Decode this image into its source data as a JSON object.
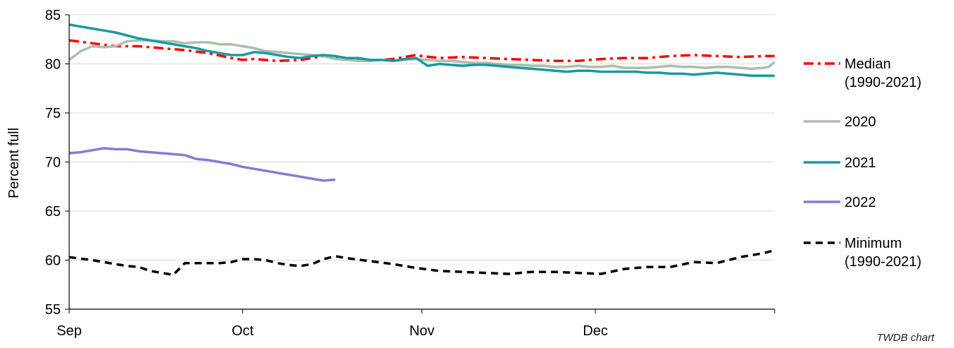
{
  "credit": "TWDB chart",
  "chart_data": {
    "type": "line",
    "ylabel": "Percent full",
    "xlabel": "",
    "ylim": [
      55,
      85
    ],
    "yticks": [
      55,
      60,
      65,
      70,
      75,
      80,
      85
    ],
    "xlim": [
      0,
      122
    ],
    "xticks": [
      {
        "day": 0,
        "label": "Sep"
      },
      {
        "day": 30,
        "label": "Oct"
      },
      {
        "day": 61,
        "label": "Nov"
      },
      {
        "day": 91,
        "label": "Dec"
      }
    ],
    "grid": "horizontal",
    "legend_position": "right",
    "series": [
      {
        "name": "Median (1990-2021)",
        "legend_lines": [
          "Median",
          "(1990-2021)"
        ],
        "color": "#ff0000",
        "style": "dashdot",
        "x": [
          0,
          4,
          8,
          12,
          16,
          20,
          24,
          28,
          30,
          32,
          36,
          40,
          44,
          48,
          52,
          56,
          60,
          61,
          64,
          68,
          72,
          76,
          80,
          84,
          88,
          92,
          96,
          100,
          104,
          108,
          112,
          116,
          120,
          122
        ],
        "y": [
          82.4,
          82.1,
          81.8,
          81.8,
          81.6,
          81.4,
          81.1,
          80.6,
          80.4,
          80.5,
          80.3,
          80.4,
          80.8,
          80.5,
          80.3,
          80.5,
          80.9,
          80.8,
          80.6,
          80.7,
          80.6,
          80.5,
          80.4,
          80.3,
          80.3,
          80.5,
          80.6,
          80.6,
          80.8,
          80.9,
          80.8,
          80.7,
          80.8,
          80.8
        ]
      },
      {
        "name": "2020",
        "legend_lines": [
          "2020"
        ],
        "color": "#a9bfac",
        "style": "solid",
        "x": [
          0,
          2,
          4,
          6,
          8,
          10,
          12,
          14,
          16,
          18,
          20,
          22,
          24,
          26,
          28,
          30,
          32,
          34,
          36,
          38,
          40,
          42,
          44,
          46,
          48,
          50,
          52,
          54,
          56,
          58,
          60,
          62,
          64,
          66,
          68,
          70,
          72,
          74,
          76,
          78,
          80,
          82,
          84,
          86,
          88,
          90,
          92,
          94,
          96,
          98,
          100,
          102,
          104,
          106,
          108,
          110,
          112,
          114,
          116,
          118,
          120,
          121,
          122
        ],
        "y": [
          80.4,
          81.3,
          81.8,
          81.7,
          81.8,
          82.3,
          82.4,
          82.4,
          82.3,
          82.3,
          82.1,
          82.2,
          82.2,
          82.0,
          82.0,
          81.8,
          81.6,
          81.3,
          81.2,
          81.1,
          81.0,
          80.9,
          80.8,
          80.5,
          80.4,
          80.3,
          80.3,
          80.4,
          80.3,
          80.4,
          80.5,
          80.4,
          80.3,
          80.3,
          80.2,
          80.1,
          80.1,
          80.0,
          79.9,
          79.9,
          79.8,
          79.8,
          79.7,
          79.7,
          79.8,
          79.7,
          79.7,
          79.8,
          79.6,
          79.6,
          79.6,
          79.7,
          79.8,
          79.7,
          79.7,
          79.6,
          79.7,
          79.7,
          79.6,
          79.5,
          79.6,
          79.7,
          80.2
        ]
      },
      {
        "name": "2021",
        "legend_lines": [
          "2021"
        ],
        "color": "#1a9aa0",
        "style": "solid",
        "x": [
          0,
          2,
          4,
          6,
          8,
          10,
          12,
          14,
          16,
          18,
          20,
          22,
          24,
          26,
          28,
          30,
          32,
          34,
          36,
          38,
          40,
          42,
          44,
          46,
          48,
          50,
          52,
          54,
          56,
          58,
          60,
          62,
          64,
          66,
          68,
          70,
          72,
          74,
          76,
          78,
          80,
          82,
          84,
          86,
          88,
          90,
          92,
          94,
          96,
          98,
          100,
          102,
          104,
          106,
          108,
          110,
          112,
          114,
          116,
          118,
          120,
          122
        ],
        "y": [
          84.0,
          83.8,
          83.6,
          83.4,
          83.2,
          82.9,
          82.6,
          82.4,
          82.2,
          82.0,
          81.8,
          81.6,
          81.3,
          81.1,
          80.9,
          80.9,
          81.2,
          81.1,
          80.9,
          80.7,
          80.6,
          80.8,
          80.9,
          80.8,
          80.6,
          80.6,
          80.4,
          80.4,
          80.3,
          80.5,
          80.6,
          79.8,
          80.0,
          79.9,
          79.8,
          79.9,
          79.9,
          79.8,
          79.7,
          79.6,
          79.5,
          79.4,
          79.3,
          79.2,
          79.3,
          79.3,
          79.2,
          79.2,
          79.2,
          79.2,
          79.1,
          79.1,
          79.0,
          79.0,
          78.9,
          79.0,
          79.1,
          79.0,
          78.9,
          78.8,
          78.8,
          78.8
        ]
      },
      {
        "name": "2022",
        "legend_lines": [
          "2022"
        ],
        "color": "#8b78d4",
        "style": "solid",
        "x": [
          0,
          2,
          4,
          6,
          8,
          10,
          12,
          14,
          16,
          18,
          20,
          22,
          24,
          26,
          28,
          30,
          32,
          34,
          36,
          38,
          40,
          42,
          44,
          46
        ],
        "y": [
          70.9,
          71.0,
          71.2,
          71.4,
          71.3,
          71.3,
          71.1,
          71.0,
          70.9,
          70.8,
          70.7,
          70.3,
          70.2,
          70.0,
          69.8,
          69.5,
          69.3,
          69.1,
          68.9,
          68.7,
          68.5,
          68.3,
          68.1,
          68.2
        ]
      },
      {
        "name": "Minimum (1990-2021)",
        "legend_lines": [
          "Minimum",
          "(1990-2021)"
        ],
        "color": "#000000",
        "style": "dashed",
        "x": [
          0,
          4,
          8,
          10,
          12,
          14,
          16,
          18,
          20,
          22,
          24,
          26,
          28,
          30,
          32,
          34,
          36,
          38,
          40,
          42,
          44,
          46,
          48,
          52,
          56,
          60,
          64,
          68,
          72,
          76,
          80,
          84,
          88,
          92,
          96,
          100,
          104,
          108,
          112,
          116,
          120,
          122
        ],
        "y": [
          60.3,
          60.0,
          59.6,
          59.4,
          59.3,
          58.9,
          58.7,
          58.5,
          59.7,
          59.7,
          59.7,
          59.7,
          59.8,
          60.1,
          60.1,
          60.0,
          59.7,
          59.5,
          59.4,
          59.6,
          60.1,
          60.4,
          60.2,
          59.9,
          59.6,
          59.2,
          58.9,
          58.8,
          58.7,
          58.6,
          58.8,
          58.8,
          58.7,
          58.6,
          59.1,
          59.3,
          59.3,
          59.8,
          59.7,
          60.3,
          60.7,
          61.0
        ]
      }
    ]
  }
}
